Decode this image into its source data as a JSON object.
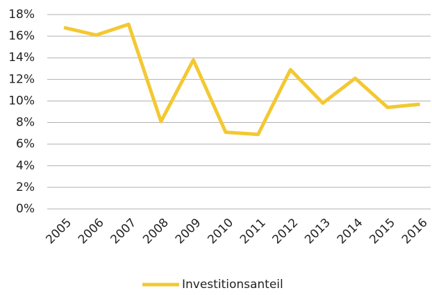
{
  "chart_data": {
    "type": "line",
    "categories": [
      "2005",
      "2006",
      "2007",
      "2008",
      "2009",
      "2010",
      "2011",
      "2012",
      "2013",
      "2014",
      "2015",
      "2016"
    ],
    "series": [
      {
        "name": "Investitionsanteil",
        "color": "#f3c832",
        "values": [
          16.8,
          16.1,
          17.1,
          8.1,
          13.8,
          7.1,
          6.9,
          12.9,
          9.8,
          12.1,
          9.4,
          9.7
        ]
      }
    ],
    "ylim": [
      0,
      18
    ],
    "yticks": [
      {
        "value": 0,
        "label": "0%"
      },
      {
        "value": 2,
        "label": "2%"
      },
      {
        "value": 4,
        "label": "4%"
      },
      {
        "value": 6,
        "label": "6%"
      },
      {
        "value": 8,
        "label": "8%"
      },
      {
        "value": 10,
        "label": "10%"
      },
      {
        "value": 12,
        "label": "12%"
      },
      {
        "value": 14,
        "label": "14%"
      },
      {
        "value": 16,
        "label": "16%"
      },
      {
        "value": 18,
        "label": "18%"
      }
    ],
    "grid": true,
    "legend": "bottom"
  }
}
